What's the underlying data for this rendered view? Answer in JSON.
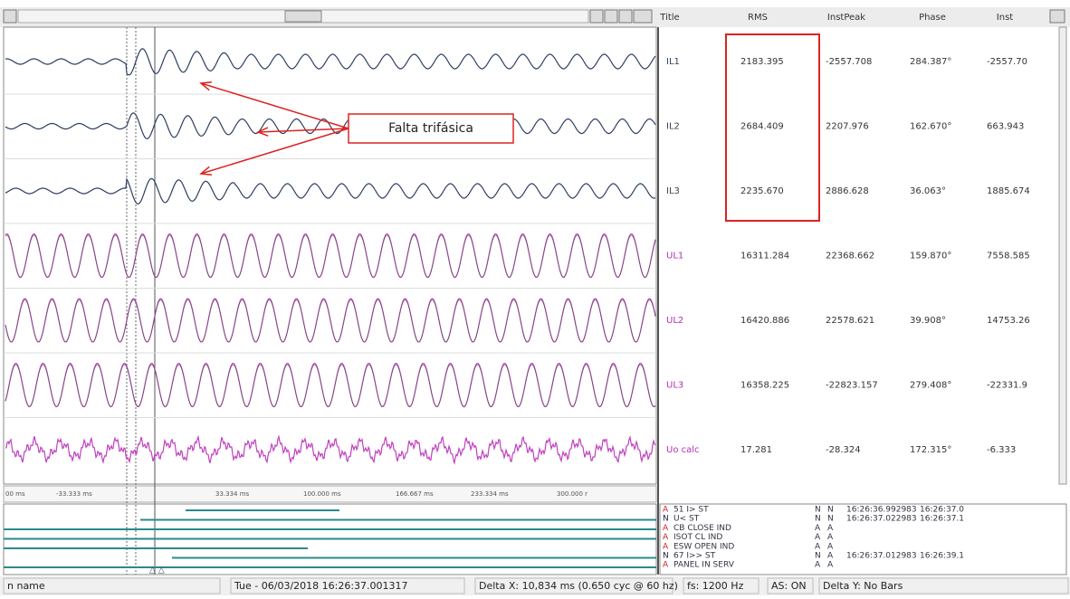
{
  "table_headers": [
    "Title",
    "RMS",
    "InstPeak",
    "Phase",
    "Inst"
  ],
  "channels": [
    {
      "title": "IL1",
      "rms": "2183.395",
      "inst_peak": "-2557.708",
      "phase": "284.387°",
      "inst": "-2557.70"
    },
    {
      "title": "IL2",
      "rms": "2684.409",
      "inst_peak": "2207.976",
      "phase": "162.670°",
      "inst": "663.943"
    },
    {
      "title": "IL3",
      "rms": "2235.670",
      "inst_peak": "2886.628",
      "phase": "36.063°",
      "inst": "1885.674"
    },
    {
      "title": "UL1",
      "rms": "16311.284",
      "inst_peak": "22368.662",
      "phase": "159.870°",
      "inst": "7558.585"
    },
    {
      "title": "UL2",
      "rms": "16420.886",
      "inst_peak": "22578.621",
      "phase": "39.908°",
      "inst": "14753.26"
    },
    {
      "title": "UL3",
      "rms": "16358.225",
      "inst_peak": "-22823.157",
      "phase": "279.408°",
      "inst": "-22331.9"
    },
    {
      "title": "Uo calc",
      "rms": "17.281",
      "inst_peak": "-28.324",
      "phase": "172.315°",
      "inst": "-6.333"
    }
  ],
  "annotation": "Falta trifásica",
  "time_axis": [
    "00 ms",
    "-33.333 ms",
    "33.334 ms",
    "100.000 ms",
    "166.667 ms",
    "233.334 ms",
    "300.000 r"
  ],
  "digital": [
    {
      "flag": "A",
      "name": "51 I> ST",
      "s1": "N",
      "s2": "N",
      "t1": "16:26:36.992983",
      "t2": "16:26:37.0"
    },
    {
      "flag": "N",
      "name": "U< ST",
      "s1": "N",
      "s2": "N",
      "t1": "16:26:37.022983",
      "t2": "16:26:37.1"
    },
    {
      "flag": "A",
      "name": "CB CLOSE IND",
      "s1": "A",
      "s2": "A",
      "t1": null,
      "t2": null
    },
    {
      "flag": "A",
      "name": "ISOT CL IND",
      "s1": "A",
      "s2": "A",
      "t1": null,
      "t2": null
    },
    {
      "flag": "A",
      "name": "ESW OPEN IND",
      "s1": "A",
      "s2": "A",
      "t1": null,
      "t2": null
    },
    {
      "flag": "N",
      "name": "67 I>> ST",
      "s1": "N",
      "s2": "A",
      "t1": "16:26:37.012983",
      "t2": "16:26:39.1"
    },
    {
      "flag": "A",
      "name": "PANEL IN SERV",
      "s1": "A",
      "s2": "A",
      "t1": null,
      "t2": null
    }
  ],
  "status": [
    "n name",
    "Tue - 06/03/2018 16:26:37.001317",
    "Delta X: 10,834 ms (0.650 cyc @ 60 hz)",
    "fs: 1200 Hz",
    "AS: ON",
    "Delta Y: No Bars"
  ]
}
